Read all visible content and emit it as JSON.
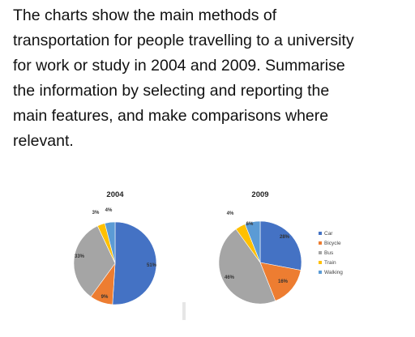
{
  "prompt": {
    "lines": [
      "The charts show the main methods of",
      "transportation for people travelling to a university",
      "for work or study in 2004 and 2009. Summarise",
      "the information by selecting and reporting the",
      "main features, and make comparisons where",
      "relevant."
    ]
  },
  "chart_data": [
    {
      "type": "pie",
      "title": "2004",
      "categories": [
        "Car",
        "Bicycle",
        "Bus",
        "Train",
        "Walking"
      ],
      "values": [
        51,
        9,
        33,
        3,
        4
      ],
      "labels": [
        "51%",
        "9%",
        "33%",
        "3%",
        "4%"
      ]
    },
    {
      "type": "pie",
      "title": "2009",
      "categories": [
        "Car",
        "Bicycle",
        "Bus",
        "Train",
        "Walking"
      ],
      "values": [
        28,
        16,
        46,
        4,
        6
      ],
      "labels": [
        "28%",
        "16%",
        "46%",
        "4%",
        "6%"
      ]
    }
  ],
  "legend": {
    "placement": "right",
    "items": [
      "Car",
      "Bicycle",
      "Bus",
      "Train",
      "Walking"
    ]
  },
  "colors": {
    "Car": "#4472c4",
    "Bicycle": "#ed7d31",
    "Bus": "#a5a5a5",
    "Train": "#ffc000",
    "Walking": "#5b9bd5"
  }
}
